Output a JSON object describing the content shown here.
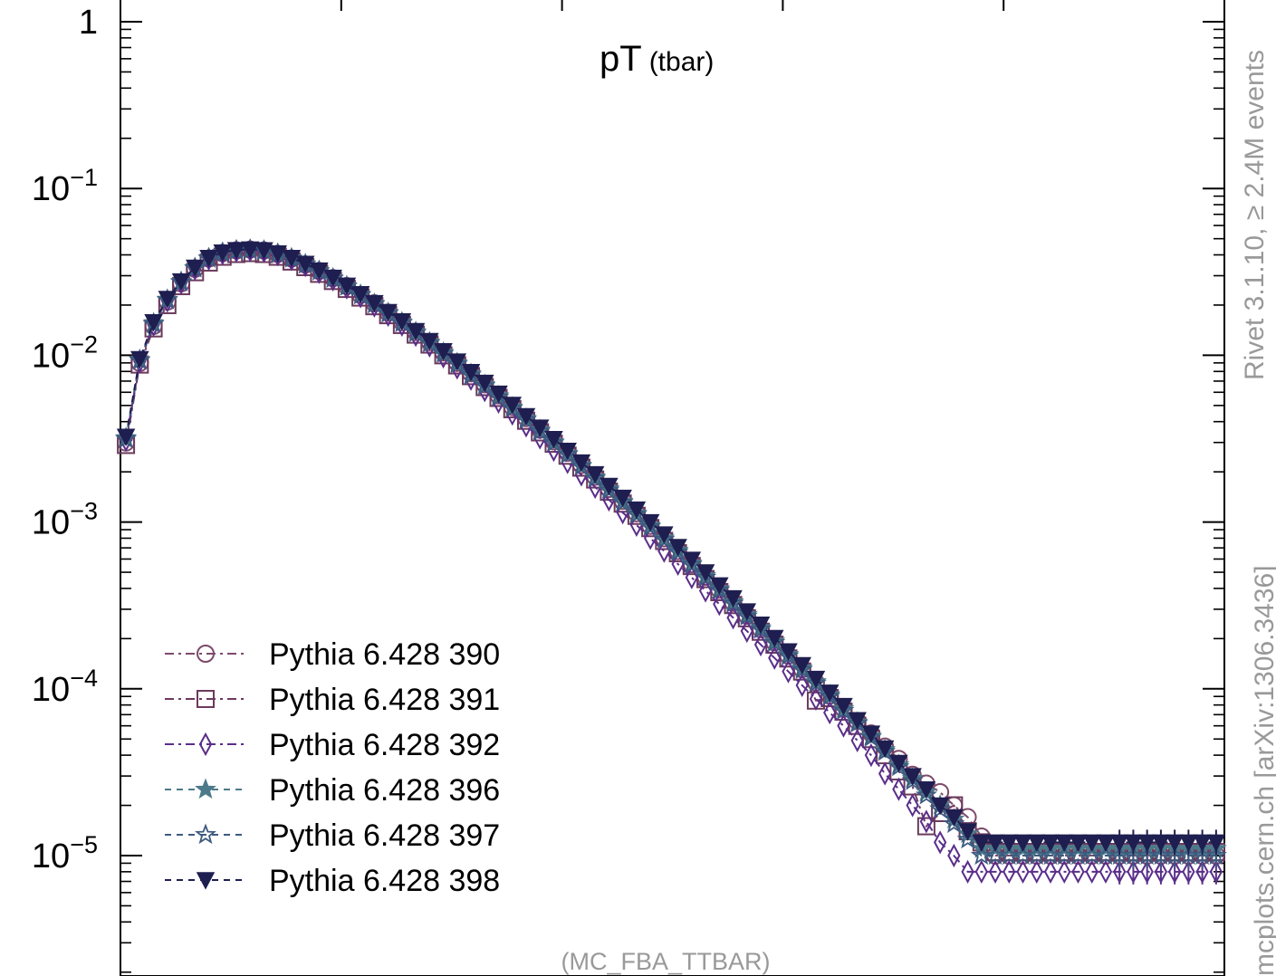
{
  "chart_data": {
    "type": "scatter",
    "title": "pT",
    "title_sub": "(tbar)",
    "analysis_label": "(MC_FBA_TTBAR)",
    "side_label": "Rivet 3.1.10,  ≥ 2.4M events",
    "side_label_2": "mcplots.cern.ch [arXiv:1306.3436]",
    "ylog": true,
    "ylim": [
      2e-06,
      1
    ],
    "xlim": [
      0,
      1
    ],
    "y_ticks": [
      {
        "value": 1,
        "mant": "1",
        "exp": ""
      },
      {
        "value": 0.1,
        "mant": "10",
        "exp": "−1"
      },
      {
        "value": 0.01,
        "mant": "10",
        "exp": "−2"
      },
      {
        "value": 0.001,
        "mant": "10",
        "exp": "−3"
      },
      {
        "value": 0.0001,
        "mant": "10",
        "exp": "−4"
      },
      {
        "value": 1e-05,
        "mant": "10",
        "exp": "−5"
      }
    ],
    "grid": false,
    "legend_position": "bottom-left",
    "x": [
      0.005,
      0.0175,
      0.03,
      0.0425,
      0.055,
      0.0675,
      0.08,
      0.0925,
      0.105,
      0.1175,
      0.13,
      0.1425,
      0.155,
      0.1675,
      0.18,
      0.1925,
      0.205,
      0.2175,
      0.23,
      0.2425,
      0.255,
      0.2675,
      0.28,
      0.2925,
      0.305,
      0.3175,
      0.33,
      0.3425,
      0.355,
      0.3675,
      0.38,
      0.3925,
      0.405,
      0.4175,
      0.43,
      0.4425,
      0.455,
      0.4675,
      0.48,
      0.4925,
      0.505,
      0.5175,
      0.53,
      0.5425,
      0.555,
      0.5675,
      0.58,
      0.5925,
      0.605,
      0.6175,
      0.63,
      0.6425,
      0.655,
      0.6675,
      0.68,
      0.6925,
      0.705,
      0.7175,
      0.73,
      0.7425,
      0.755,
      0.7675,
      0.78,
      0.7925,
      0.805,
      0.8175,
      0.83,
      0.8425,
      0.855,
      0.8675,
      0.88,
      0.8925,
      0.905,
      0.9175,
      0.93,
      0.9425,
      0.955,
      0.9675,
      0.98,
      0.9925
    ],
    "series": [
      {
        "name": "Pythia 6.428 390",
        "marker": "circle",
        "color": "#7d4a6b",
        "dash": "10,5,3,5",
        "values": [
          0.003,
          0.009,
          0.015,
          0.021,
          0.027,
          0.033,
          0.038,
          0.041,
          0.0425,
          0.043,
          0.0425,
          0.0405,
          0.038,
          0.035,
          0.032,
          0.029,
          0.026,
          0.023,
          0.0205,
          0.018,
          0.0158,
          0.0138,
          0.012,
          0.0104,
          0.009,
          0.0078,
          0.0067,
          0.00575,
          0.0049,
          0.0042,
          0.00358,
          0.00305,
          0.0026,
          0.0022,
          0.00187,
          0.00158,
          0.00134,
          0.00113,
          0.00095,
          0.0008,
          0.00067,
          0.00056,
          0.00047,
          0.000393,
          0.000328,
          0.000274,
          0.000228,
          0.00019,
          0.000158,
          0.000131,
          0.000109,
          9.1e-05,
          7.6e-05,
          6.4e-05,
          5.4e-05,
          4.5e-05,
          3.8e-05,
          3.05e-05,
          2.7e-05,
          2.4e-05,
          2e-05,
          1.7e-05,
          1.3e-05,
          1e-05,
          1e-05,
          1e-05,
          1e-05,
          1e-05,
          1e-05,
          1e-05,
          1e-05,
          1e-05,
          1e-05,
          1e-05,
          1e-05,
          1e-05,
          1e-05,
          1e-05,
          1e-05,
          1e-05
        ]
      },
      {
        "name": "Pythia 6.428 391",
        "marker": "square",
        "color": "#6b3a5c",
        "dash": "10,5,3,5",
        "values": [
          0.0029,
          0.0088,
          0.0145,
          0.02,
          0.026,
          0.0315,
          0.036,
          0.039,
          0.0405,
          0.041,
          0.0405,
          0.039,
          0.0365,
          0.0338,
          0.0308,
          0.0279,
          0.025,
          0.0222,
          0.0197,
          0.0174,
          0.0152,
          0.0133,
          0.0116,
          0.01,
          0.0087,
          0.0075,
          0.00645,
          0.00555,
          0.00475,
          0.00405,
          0.00345,
          0.00295,
          0.0025,
          0.00212,
          0.0018,
          0.00152,
          0.00129,
          0.00109,
          0.00092,
          0.00077,
          0.00065,
          0.000545,
          0.000455,
          0.00038,
          0.000318,
          0.000265,
          0.00022,
          0.000184,
          0.000152,
          0.000127,
          8.5e-05,
          8.8e-05,
          7.3e-05,
          6e-05,
          5e-05,
          4e-05,
          3.2e-05,
          2.6e-05,
          1.5e-05,
          1.8e-05,
          2e-05,
          1.4e-05,
          1.2e-05,
          1.05e-05,
          1.05e-05,
          1.05e-05,
          1.05e-05,
          1.05e-05,
          1.05e-05,
          1.05e-05,
          1.05e-05,
          1.05e-05,
          1.05e-05,
          1.05e-05,
          1.05e-05,
          1.05e-05,
          1.05e-05,
          1.05e-05,
          1.05e-05,
          1.05e-05
        ]
      },
      {
        "name": "Pythia 6.428 392",
        "marker": "diamond",
        "color": "#5a2e8a",
        "dash": "10,5,3,5",
        "values": [
          0.0031,
          0.0092,
          0.0152,
          0.0212,
          0.0272,
          0.033,
          0.0378,
          0.0408,
          0.0422,
          0.0426,
          0.042,
          0.0402,
          0.0376,
          0.0346,
          0.0315,
          0.0284,
          0.0254,
          0.0225,
          0.0198,
          0.0174,
          0.0152,
          0.0132,
          0.0114,
          0.0098,
          0.0084,
          0.0072,
          0.00615,
          0.00525,
          0.00445,
          0.00378,
          0.0032,
          0.0027,
          0.00228,
          0.00192,
          0.00162,
          0.00136,
          0.00114,
          0.00096,
          0.0008,
          0.00067,
          0.00056,
          0.000465,
          0.000387,
          0.000322,
          0.000267,
          0.000222,
          0.000184,
          0.000153,
          0.000127,
          0.000105,
          8.7e-05,
          7.2e-05,
          6e-05,
          4.9e-05,
          4e-05,
          3.1e-05,
          2.5e-05,
          2e-05,
          1.6e-05,
          1.2e-05,
          1e-05,
          8e-06,
          8e-06,
          8e-06,
          8e-06,
          8e-06,
          8e-06,
          8e-06,
          8e-06,
          8e-06,
          8e-06,
          8e-06,
          8e-06,
          8e-06,
          8e-06,
          8e-06,
          8e-06,
          8e-06,
          8e-06,
          8e-06
        ]
      },
      {
        "name": "Pythia 6.428 396",
        "marker": "star",
        "color": "#4d7a8a",
        "dash": "7,6",
        "values": [
          0.0032,
          0.0094,
          0.0156,
          0.0216,
          0.0276,
          0.0334,
          0.0382,
          0.0412,
          0.0426,
          0.043,
          0.0425,
          0.0407,
          0.0382,
          0.0352,
          0.0321,
          0.029,
          0.026,
          0.0231,
          0.0204,
          0.018,
          0.0158,
          0.0138,
          0.012,
          0.0104,
          0.009,
          0.00775,
          0.00665,
          0.0057,
          0.00488,
          0.00417,
          0.00356,
          0.00303,
          0.00258,
          0.00219,
          0.00186,
          0.00158,
          0.00133,
          0.00113,
          0.00095,
          0.0008,
          0.000675,
          0.000565,
          0.000475,
          0.000397,
          0.000332,
          0.000278,
          0.000232,
          0.000193,
          0.00016,
          0.000133,
          0.00011,
          9.2e-05,
          7.6e-05,
          6.3e-05,
          5.2e-05,
          4.3e-05,
          3.5e-05,
          2.9e-05,
          2.4e-05,
          2e-05,
          1.65e-05,
          1.35e-05,
          1.1e-05,
          1.1e-05,
          1.1e-05,
          1.1e-05,
          1.1e-05,
          1.1e-05,
          1.1e-05,
          1.1e-05,
          1.1e-05,
          1.1e-05,
          1.1e-05,
          1.1e-05,
          1.1e-05,
          1.1e-05,
          1.1e-05,
          1.1e-05,
          1.1e-05,
          1.1e-05
        ]
      },
      {
        "name": "Pythia 6.428 397",
        "marker": "star-open",
        "color": "#3d5a80",
        "dash": "7,6",
        "values": [
          0.00315,
          0.0093,
          0.0154,
          0.0214,
          0.0274,
          0.0332,
          0.038,
          0.041,
          0.0424,
          0.0428,
          0.0423,
          0.0405,
          0.038,
          0.035,
          0.0319,
          0.0288,
          0.0258,
          0.0229,
          0.0202,
          0.0178,
          0.0156,
          0.0136,
          0.0118,
          0.0102,
          0.00885,
          0.0076,
          0.00655,
          0.0056,
          0.0048,
          0.0041,
          0.0035,
          0.00298,
          0.00254,
          0.00216,
          0.00183,
          0.00155,
          0.00131,
          0.00111,
          0.000935,
          0.000785,
          0.00066,
          0.000555,
          0.000465,
          0.00039,
          0.000325,
          0.000272,
          0.000227,
          0.000189,
          0.000157,
          0.00013,
          0.000108,
          9e-05,
          7.4e-05,
          6.2e-05,
          5.1e-05,
          4.2e-05,
          3.4e-05,
          2.8e-05,
          2.3e-05,
          1.9e-05,
          1.55e-05,
          1.25e-05,
          1e-05,
          1e-05,
          1e-05,
          1e-05,
          1e-05,
          1e-05,
          1e-05,
          1e-05,
          1e-05,
          1e-05,
          1e-05,
          1e-05,
          1e-05,
          1e-05,
          1e-05,
          1e-05,
          1e-05,
          1e-05
        ]
      },
      {
        "name": "Pythia 6.428 398",
        "marker": "triangle-down",
        "color": "#1e1e50",
        "dash": "7,6",
        "values": [
          0.00325,
          0.0095,
          0.0158,
          0.0218,
          0.0278,
          0.0336,
          0.0384,
          0.0414,
          0.0428,
          0.0432,
          0.0427,
          0.0409,
          0.0384,
          0.0354,
          0.0323,
          0.0292,
          0.0262,
          0.0233,
          0.0206,
          0.0182,
          0.016,
          0.014,
          0.0122,
          0.0106,
          0.0092,
          0.00795,
          0.00685,
          0.0059,
          0.00505,
          0.00432,
          0.00369,
          0.00315,
          0.00268,
          0.00228,
          0.00194,
          0.00165,
          0.0014,
          0.00119,
          0.001,
          0.000845,
          0.00071,
          0.000595,
          0.0005,
          0.000418,
          0.00035,
          0.000292,
          0.000243,
          0.000202,
          0.000168,
          0.000139,
          0.000115,
          9.5e-05,
          7.9e-05,
          6.5e-05,
          5.4e-05,
          4.4e-05,
          3.6e-05,
          3e-05,
          2.5e-05,
          2e-05,
          1.7e-05,
          1.4e-05,
          1.2e-05,
          1.2e-05,
          1.2e-05,
          1.2e-05,
          1.2e-05,
          1.2e-05,
          1.2e-05,
          1.2e-05,
          1.2e-05,
          1.2e-05,
          1.2e-05,
          1.2e-05,
          1.2e-05,
          1.2e-05,
          1.2e-05,
          1.2e-05,
          1.2e-05,
          1.2e-05
        ]
      }
    ]
  }
}
